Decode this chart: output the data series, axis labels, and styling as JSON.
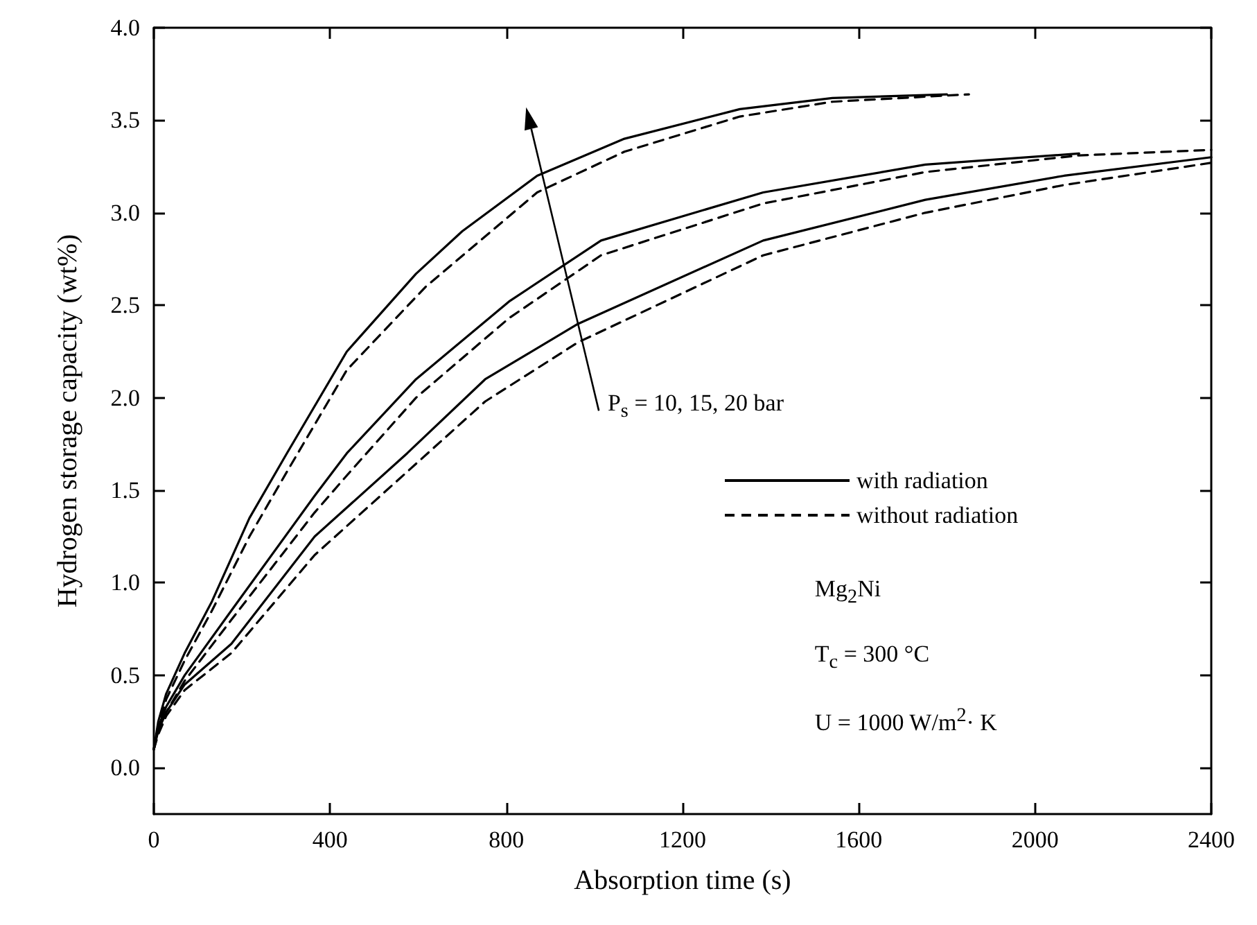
{
  "chart_data": {
    "type": "line",
    "xlabel": "Absorption time (s)",
    "ylabel": "Hydrogen storage capacity (wt%)",
    "xlim": [
      0,
      2400
    ],
    "xticks": [
      0,
      400,
      800,
      1200,
      1600,
      2000,
      2400
    ],
    "ylim": [
      -0.25,
      4.0
    ],
    "yticks": [
      {
        "value": 0,
        "label": "0.0"
      },
      0.5,
      {
        "value": 1,
        "label": "1.0"
      },
      1.5,
      {
        "value": 2,
        "label": "2.0"
      },
      2.5,
      {
        "value": 3,
        "label": "3.0"
      },
      3.5,
      {
        "value": 4,
        "label": "4.0"
      }
    ],
    "grid": false,
    "legend": "right",
    "marker": "none",
    "annotations": [
      "P$_{s}$ = 10, 15, 20 bar",
      "Mg$_{2}$Ni",
      "T$_{c}$ = 300 °C",
      "U = 1000 W/m$^{2}$· K"
    ],
    "series": [
      {
        "name": "with radiation",
        "color": "#000000",
        "line_style": "solid",
        "x": [
          0,
          10,
          28,
          70,
          132,
          217,
          302,
          438,
          595,
          700,
          870,
          1068,
          1330,
          1540,
          1800
        ],
        "values": [
          0.1,
          0.25,
          0.4,
          0.62,
          0.9,
          1.35,
          1.7,
          2.25,
          2.67,
          2.9,
          3.2,
          3.4,
          3.56,
          3.62,
          3.64
        ]
      },
      {
        "name": "without radiation",
        "color": "#000000",
        "line_style": "dashed",
        "x": [
          0,
          10,
          28,
          70,
          132,
          217,
          302,
          438,
          617,
          870,
          1068,
          1330,
          1540,
          1850
        ],
        "values": [
          0.1,
          0.22,
          0.37,
          0.58,
          0.85,
          1.25,
          1.6,
          2.15,
          2.6,
          3.11,
          3.33,
          3.52,
          3.6,
          3.64
        ]
      },
      {
        "color": "#000000",
        "line_style": "solid",
        "x": [
          0,
          10,
          28,
          70,
          176,
          365,
          438,
          595,
          806,
          1015,
          1383,
          1751,
          2100
        ],
        "values": [
          0.1,
          0.22,
          0.33,
          0.5,
          0.85,
          1.47,
          1.7,
          2.1,
          2.52,
          2.85,
          3.11,
          3.26,
          3.32
        ]
      },
      {
        "color": "#000000",
        "line_style": "dashed",
        "x": [
          0,
          10,
          28,
          70,
          176,
          365,
          438,
          595,
          806,
          1015,
          1383,
          1751,
          2100,
          2400
        ],
        "values": [
          0.1,
          0.2,
          0.3,
          0.47,
          0.8,
          1.38,
          1.58,
          2.0,
          2.43,
          2.77,
          3.05,
          3.22,
          3.31,
          3.34
        ]
      },
      {
        "color": "#000000",
        "line_style": "solid",
        "x": [
          0,
          10,
          28,
          70,
          176,
          365,
          575,
          752,
          963,
          1383,
          1751,
          2066,
          2400
        ],
        "values": [
          0.1,
          0.2,
          0.3,
          0.45,
          0.67,
          1.25,
          1.7,
          2.1,
          2.4,
          2.85,
          3.07,
          3.2,
          3.3
        ]
      },
      {
        "color": "#000000",
        "line_style": "dashed",
        "x": [
          0,
          10,
          28,
          70,
          176,
          365,
          575,
          752,
          963,
          1383,
          1751,
          2066,
          2400
        ],
        "values": [
          0.1,
          0.18,
          0.28,
          0.42,
          0.62,
          1.15,
          1.6,
          1.98,
          2.3,
          2.77,
          3.0,
          3.15,
          3.27
        ]
      }
    ]
  }
}
